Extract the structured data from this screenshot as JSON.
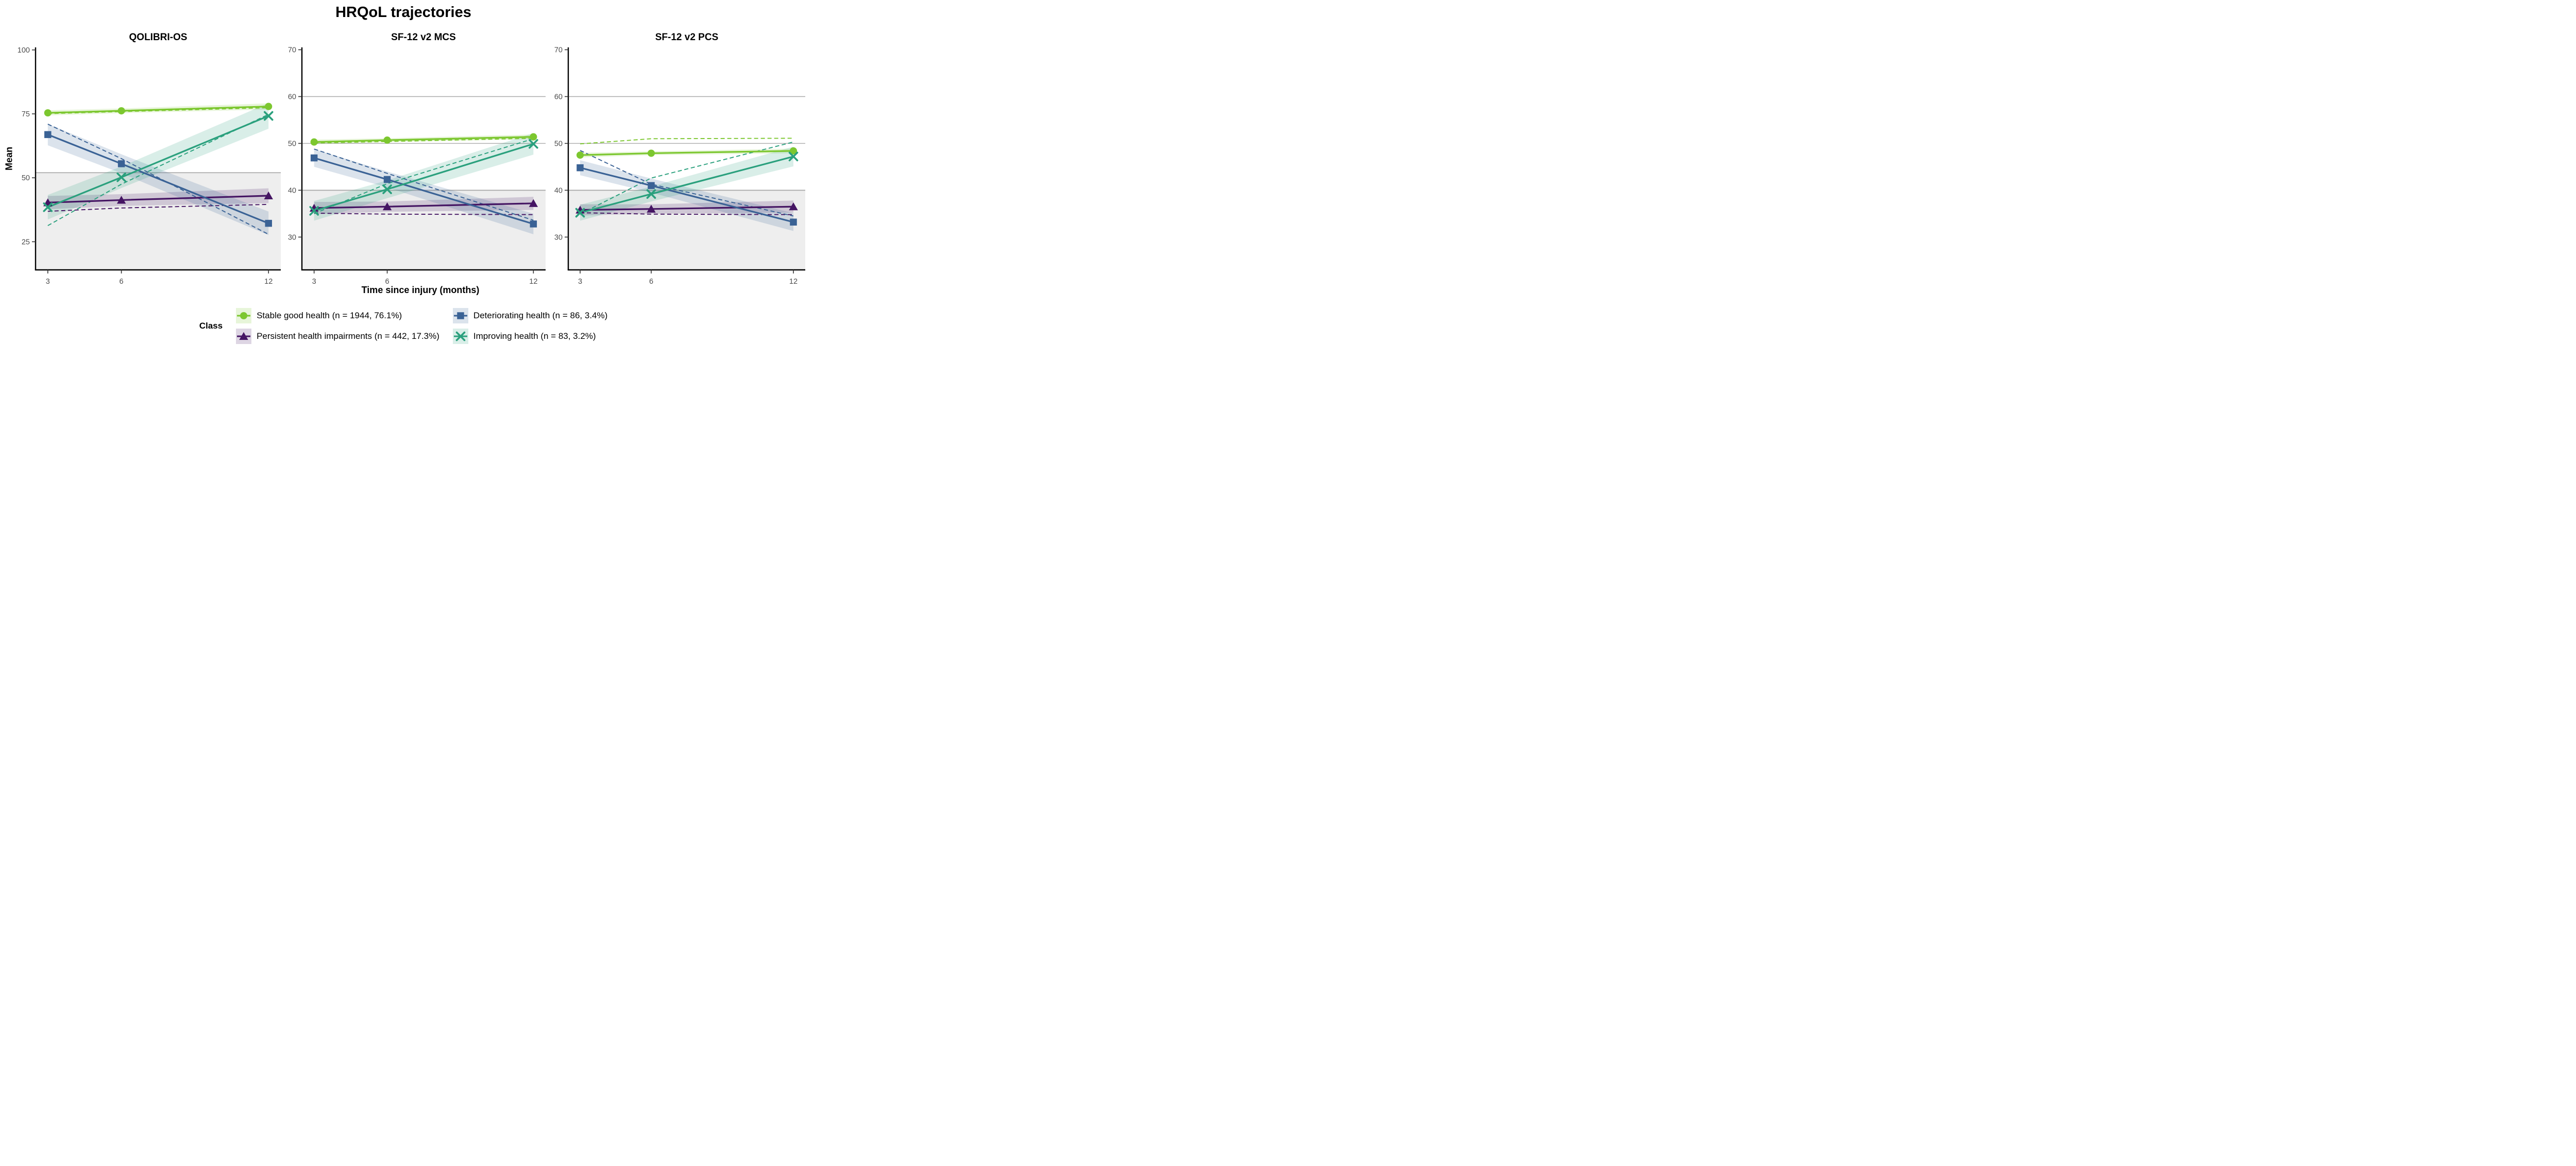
{
  "title": "HRQoL trajectories",
  "axes": {
    "x_label": "Time since injury (months)",
    "y_label": "Mean"
  },
  "legend": {
    "title": "Class"
  },
  "colors": {
    "gridline": "#ABABAB",
    "threshold_line": "#A6A6A6",
    "shade_below_threshold": "#EEEEEE",
    "axis_line": "#000000",
    "tick_label": "#4D4D4D"
  },
  "classes": [
    {
      "id": "stable",
      "label": "Stable good health (n = 1944, 76.1%)",
      "color": "#7CC72F",
      "marker": "circle"
    },
    {
      "id": "persistent",
      "label": "Persistent health impairments (n = 442, 17.3%)",
      "color": "#451563",
      "marker": "triangle"
    },
    {
      "id": "deteriorating",
      "label": "Deteriorating health (n = 86, 3.4%)",
      "color": "#3A6295",
      "marker": "square"
    },
    {
      "id": "improving",
      "label": "Improving health (n = 83, 3.2%)",
      "color": "#2AA07D",
      "marker": "cross"
    }
  ],
  "chart_data": {
    "type": "line",
    "x": [
      3,
      6,
      12
    ],
    "xlabel": "Time since injury (months)",
    "ylabel": "Mean",
    "legend_position": "bottom",
    "grid": "horizontal-gray-lines, gray shading below clinical threshold",
    "line_styles": "solid = model-estimated mean with CI ribbon and markers, dashed = observed mean",
    "panels": [
      {
        "title": "QOLIBRI-OS",
        "ylim": [
          14,
          101
        ],
        "yticks": [
          25,
          50,
          75,
          100
        ],
        "gridlines": [],
        "threshold": 52,
        "series": [
          {
            "class": "stable",
            "solid": [
              75.4,
              76.2,
              77.9
            ],
            "dashed": [
              75.1,
              75.9,
              77.4
            ],
            "ci": [
              1.0,
              0.9,
              1.2
            ]
          },
          {
            "class": "persistent",
            "solid": [
              40.3,
              41.3,
              43.0
            ],
            "dashed": [
              36.9,
              38.2,
              39.6
            ],
            "ci": [
              2.6,
              2.3,
              2.9
            ]
          },
          {
            "class": "deteriorating",
            "solid": [
              66.9,
              55.5,
              32.2
            ],
            "dashed": [
              71.0,
              57.5,
              27.9
            ],
            "ci": [
              4.2,
              3.7,
              4.6
            ]
          },
          {
            "class": "improving",
            "solid": [
              38.5,
              50.2,
              74.2
            ],
            "dashed": [
              31.3,
              47.5,
              74.8
            ],
            "ci": [
              4.8,
              4.2,
              5.0
            ]
          }
        ]
      },
      {
        "title": "SF-12 v2 MCS",
        "ylim": [
          23,
          70.5
        ],
        "yticks": [
          30,
          40,
          50,
          60,
          70
        ],
        "gridlines": [
          40,
          50,
          60
        ],
        "threshold": 40,
        "series": [
          {
            "class": "stable",
            "solid": [
              50.3,
              50.7,
              51.4
            ],
            "dashed": [
              50.1,
              50.4,
              51.1
            ],
            "ci": [
              0.5,
              0.4,
              0.5
            ]
          },
          {
            "class": "persistent",
            "solid": [
              36.2,
              36.5,
              37.2
            ],
            "dashed": [
              35.1,
              34.9,
              34.8
            ],
            "ci": [
              1.3,
              1.1,
              1.4
            ]
          },
          {
            "class": "deteriorating",
            "solid": [
              46.9,
              42.3,
              32.8
            ],
            "dashed": [
              48.8,
              43.6,
              33.6
            ],
            "ci": [
              1.9,
              1.7,
              2.2
            ]
          },
          {
            "class": "improving",
            "solid": [
              35.6,
              40.2,
              49.9
            ],
            "dashed": [
              35.0,
              41.4,
              51.0
            ],
            "ci": [
              2.1,
              1.9,
              2.3
            ]
          }
        ]
      },
      {
        "title": "SF-12 v2 PCS",
        "ylim": [
          23,
          70.5
        ],
        "yticks": [
          30,
          40,
          50,
          60,
          70
        ],
        "gridlines": [
          40,
          50,
          60
        ],
        "threshold": 40,
        "series": [
          {
            "class": "stable",
            "solid": [
              47.5,
              47.9,
              48.4
            ],
            "dashed": [
              49.9,
              51.0,
              51.1
            ],
            "ci": [
              0.5,
              0.4,
              0.5
            ]
          },
          {
            "class": "persistent",
            "solid": [
              35.8,
              36.0,
              36.5
            ],
            "dashed": [
              35.2,
              34.9,
              34.8
            ],
            "ci": [
              1.2,
              1.0,
              1.3
            ]
          },
          {
            "class": "deteriorating",
            "solid": [
              44.8,
              41.0,
              33.2
            ],
            "dashed": [
              48.5,
              41.3,
              34.5
            ],
            "ci": [
              1.6,
              1.5,
              1.9
            ]
          },
          {
            "class": "improving",
            "solid": [
              35.2,
              39.2,
              47.2
            ],
            "dashed": [
              34.9,
              42.6,
              50.3
            ],
            "ci": [
              1.7,
              1.6,
              2.1
            ]
          }
        ]
      }
    ]
  }
}
